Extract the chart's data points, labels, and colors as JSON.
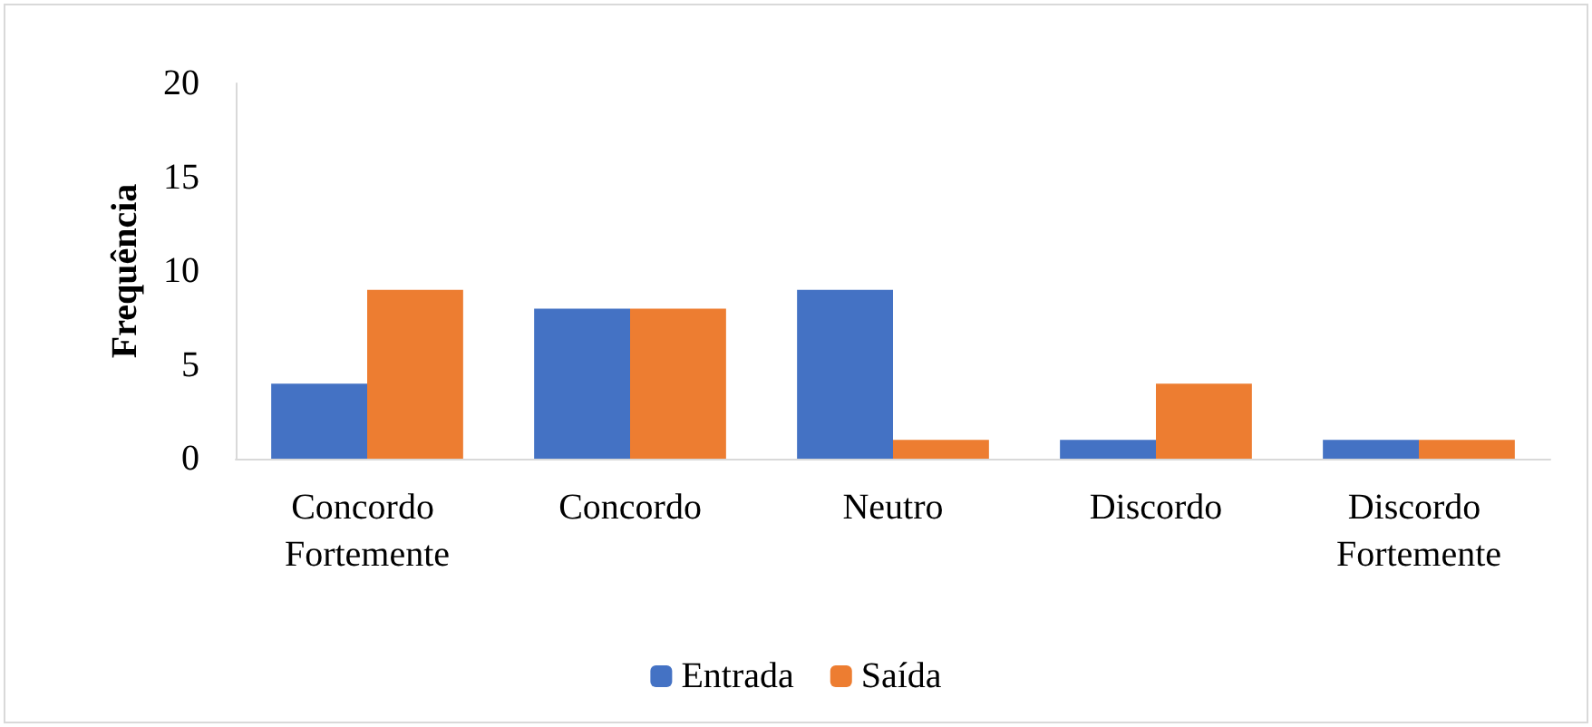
{
  "chart_data": {
    "type": "bar",
    "ylabel": "Frequência",
    "categories": [
      "Concordo Fortemente",
      "Concordo",
      "Neutro",
      "Discordo",
      "Discordo Fortemente"
    ],
    "series": [
      {
        "name": "Entrada",
        "color": "#4472c4",
        "values": [
          4,
          8,
          9,
          1,
          1
        ]
      },
      {
        "name": "Saída",
        "color": "#ed7d31",
        "values": [
          9,
          8,
          1,
          4,
          1
        ]
      }
    ],
    "ylim": [
      0,
      20
    ],
    "yticks": [
      0,
      5,
      10,
      15,
      20
    ],
    "grid": false,
    "legend": "bottom"
  }
}
